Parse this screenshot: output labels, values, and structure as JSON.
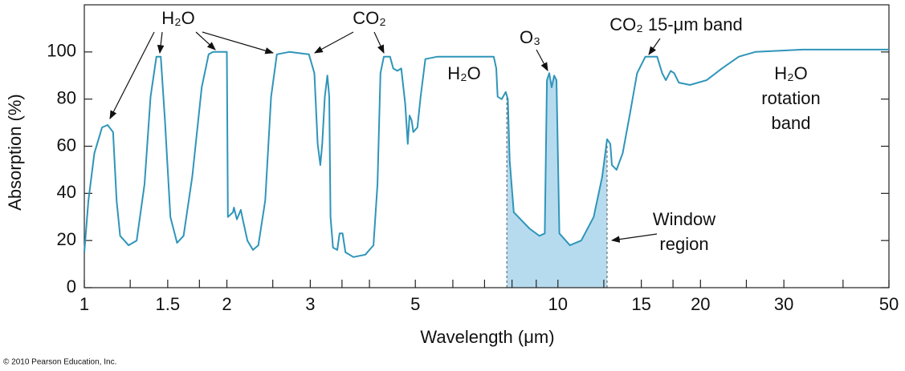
{
  "chart_data": {
    "type": "line",
    "x_label": "Wavelength (μm)",
    "y_label": "Absorption (%)",
    "log_x": true,
    "grid": false,
    "xlim": [
      1,
      50
    ],
    "ylim": [
      0,
      120
    ],
    "xticks": [
      1,
      1.5,
      2,
      3,
      5,
      10,
      15,
      20,
      30,
      50
    ],
    "xminor": [
      1.25,
      1.75,
      2.5,
      3.5,
      4,
      6,
      7,
      8,
      9,
      12.5,
      17.5,
      25,
      40
    ],
    "yticks": [
      0,
      20,
      40,
      60,
      80,
      100
    ],
    "color": "#2f95b9",
    "window": [
      7.8,
      12.7
    ],
    "window_color": "#b7dbee",
    "x": [
      1,
      1.02,
      1.05,
      1.09,
      1.12,
      1.15,
      1.17,
      1.19,
      1.24,
      1.29,
      1.34,
      1.38,
      1.42,
      1.45,
      1.48,
      1.52,
      1.57,
      1.62,
      1.69,
      1.77,
      1.83,
      1.87,
      2.0,
      2.01,
      2.06,
      2.07,
      2.1,
      2.14,
      2.16,
      2.21,
      2.27,
      2.33,
      2.41,
      2.48,
      2.55,
      2.71,
      2.98,
      3.06,
      3.11,
      3.15,
      3.18,
      3.22,
      3.26,
      3.29,
      3.31,
      3.35,
      3.42,
      3.46,
      3.51,
      3.56,
      3.7,
      3.92,
      4.08,
      4.16,
      4.22,
      4.29,
      4.42,
      4.49,
      4.58,
      4.67,
      4.76,
      4.82,
      4.86,
      4.91,
      4.95,
      5.05,
      5.13,
      5.25,
      5.57,
      7.32,
      7.41,
      7.46,
      7.61,
      7.76,
      7.84,
      7.91,
      8.07,
      8.72,
      9.14,
      9.38,
      9.48,
      9.59,
      9.7,
      9.82,
      9.93,
      10.07,
      10.6,
      11.2,
      11.9,
      12.4,
      12.7,
      12.9,
      13.0,
      13.3,
      13.7,
      14.2,
      14.7,
      15.3,
      16.2,
      16.6,
      16.9,
      17.3,
      17.6,
      18.0,
      19.0,
      20.6,
      22.2,
      24.1,
      26.1,
      32.9,
      50
    ],
    "values": [
      15,
      37,
      57,
      68,
      69,
      66,
      37,
      22,
      18,
      20,
      44,
      81,
      98,
      98,
      71,
      30,
      19,
      22,
      47,
      85,
      99,
      100,
      100,
      30,
      32,
      34,
      29,
      33,
      29,
      20,
      16,
      18,
      37,
      81,
      99,
      100,
      99,
      91,
      61,
      52,
      61,
      81,
      90,
      81,
      30,
      17,
      16,
      23,
      23,
      15,
      13,
      14,
      18,
      44,
      91,
      98,
      98,
      93,
      92,
      93,
      78,
      61,
      73,
      71,
      66,
      68,
      81,
      97,
      98,
      98,
      93,
      81,
      80,
      83,
      80,
      54,
      32,
      25,
      22,
      23,
      88,
      91,
      85,
      90,
      88,
      23,
      18,
      20,
      30,
      47,
      63,
      61,
      52,
      50,
      57,
      74,
      91,
      98,
      98,
      91,
      88,
      92,
      91,
      87,
      86,
      88,
      93,
      98,
      100,
      101,
      101
    ],
    "annotations": [
      [
        "H₂O"
      ],
      [
        "CO₂"
      ],
      [
        "H₂O"
      ],
      [
        "O₃"
      ],
      [
        "CO₂ 15-μm band"
      ],
      [
        "H₂O",
        "rotation",
        "band"
      ],
      [
        "Window",
        "region"
      ]
    ],
    "credit": "© 2010 Pearson Education, Inc."
  }
}
